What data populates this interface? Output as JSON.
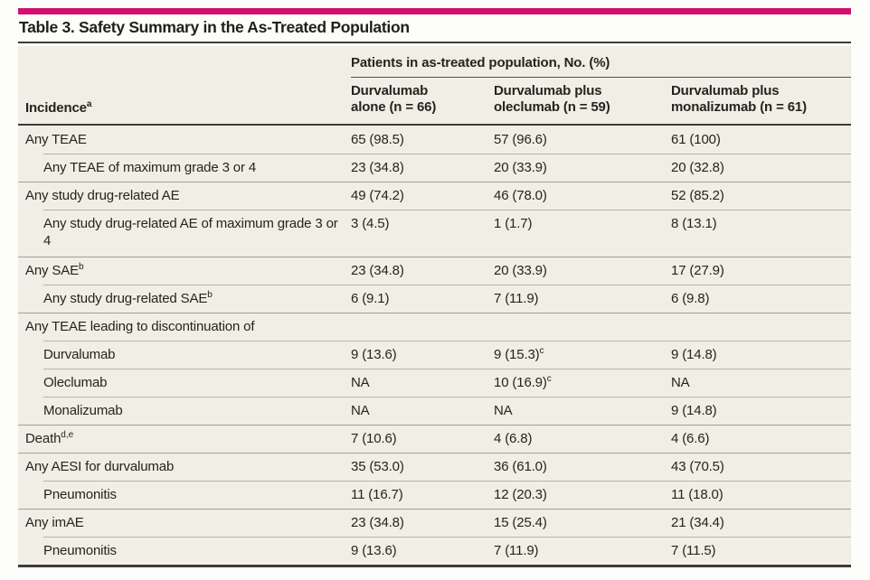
{
  "title": "Table 3. Safety Summary in the As-Treated Population",
  "colors": {
    "accent_bar": "#d2116f",
    "table_background": "#f0eee5",
    "rule_dark": "#3c3b35",
    "rule_light": "#a3a095",
    "text": "#25241f"
  },
  "header": {
    "span_label": "Patients in as-treated population, No. (%)",
    "incidence_label": "Incidence",
    "incidence_sup": "a",
    "columns": [
      {
        "line1": "Durvalumab",
        "line2": "alone (n = 66)"
      },
      {
        "line1": "Durvalumab plus",
        "line2": "oleclumab (n = 59)"
      },
      {
        "line1": "Durvalumab plus",
        "line2": "monalizumab (n = 61)"
      }
    ]
  },
  "rows": [
    {
      "label": "Any TEAE",
      "cells": [
        {
          "t": "65 (98.5)"
        },
        {
          "t": "57 (96.6)"
        },
        {
          "t": "61 (100)"
        }
      ]
    },
    {
      "label": "Any TEAE of maximum grade 3 or 4",
      "cells": [
        {
          "t": "23 (34.8)"
        },
        {
          "t": "20 (33.9)"
        },
        {
          "t": "20 (32.8)"
        }
      ]
    },
    {
      "label": "Any study drug-related AE",
      "cells": [
        {
          "t": "49 (74.2)"
        },
        {
          "t": "46 (78.0)"
        },
        {
          "t": "52 (85.2)"
        }
      ]
    },
    {
      "label": "Any study drug-related AE of maximum grade 3 or 4",
      "cells": [
        {
          "t": "3 (4.5)"
        },
        {
          "t": "1 (1.7)"
        },
        {
          "t": "8 (13.1)"
        }
      ]
    },
    {
      "label": "Any SAE",
      "label_sup": "b",
      "cells": [
        {
          "t": "23 (34.8)"
        },
        {
          "t": "20 (33.9)"
        },
        {
          "t": "17 (27.9)"
        }
      ]
    },
    {
      "label": "Any study drug-related SAE",
      "label_sup": "b",
      "cells": [
        {
          "t": "6 (9.1)"
        },
        {
          "t": "7 (11.9)"
        },
        {
          "t": "6 (9.8)"
        }
      ]
    },
    {
      "label": "Any TEAE leading to discontinuation of",
      "cells": [
        {
          "t": ""
        },
        {
          "t": ""
        },
        {
          "t": ""
        }
      ]
    },
    {
      "label": "Durvalumab",
      "cells": [
        {
          "t": "9 (13.6)"
        },
        {
          "t": "9 (15.3)",
          "sup": "c"
        },
        {
          "t": "9 (14.8)"
        }
      ]
    },
    {
      "label": "Oleclumab",
      "cells": [
        {
          "t": "NA"
        },
        {
          "t": "10 (16.9)",
          "sup": "c"
        },
        {
          "t": "NA"
        }
      ]
    },
    {
      "label": "Monalizumab",
      "cells": [
        {
          "t": "NA"
        },
        {
          "t": "NA"
        },
        {
          "t": "9 (14.8)"
        }
      ]
    },
    {
      "label": "Death",
      "label_sup": "d,e",
      "cells": [
        {
          "t": "7 (10.6)"
        },
        {
          "t": "4 (6.8)"
        },
        {
          "t": "4 (6.6)"
        }
      ]
    },
    {
      "label": "Any AESI for durvalumab",
      "cells": [
        {
          "t": "35 (53.0)"
        },
        {
          "t": "36 (61.0)"
        },
        {
          "t": "43 (70.5)"
        }
      ]
    },
    {
      "label": "Pneumonitis",
      "cells": [
        {
          "t": "11 (16.7)"
        },
        {
          "t": "12 (20.3)"
        },
        {
          "t": "11 (18.0)"
        }
      ]
    },
    {
      "label": "Any imAE",
      "cells": [
        {
          "t": "23 (34.8)"
        },
        {
          "t": "15 (25.4)"
        },
        {
          "t": "21 (34.4)"
        }
      ]
    },
    {
      "label": "Pneumonitis",
      "cells": [
        {
          "t": "9 (13.6)"
        },
        {
          "t": "7 (11.9)"
        },
        {
          "t": "7 (11.5)"
        }
      ]
    }
  ]
}
